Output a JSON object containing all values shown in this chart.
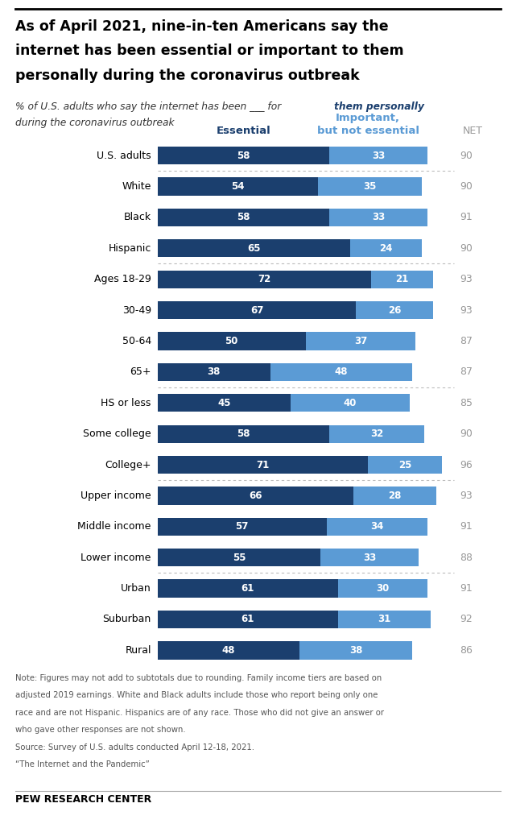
{
  "title_line1": "As of April 2021, nine-in-ten Americans say the",
  "title_line2": "internet has been essential or important to them",
  "title_line3": "personally during the coronavirus outbreak",
  "subtitle_plain": "% of U.S. adults who say the internet has been ___ for ",
  "subtitle_bold": "them personally",
  "subtitle_end": "during the coronavirus outbreak",
  "col_header_essential": "Essential",
  "col_header_important": "Important,\nbut not essential",
  "col_header_net": "NET",
  "categories": [
    "U.S. adults",
    "White",
    "Black",
    "Hispanic",
    "Ages 18-29",
    "30-49",
    "50-64",
    "65+",
    "HS or less",
    "Some college",
    "College+",
    "Upper income",
    "Middle income",
    "Lower income",
    "Urban",
    "Suburban",
    "Rural"
  ],
  "essential": [
    58,
    54,
    58,
    65,
    72,
    67,
    50,
    38,
    45,
    58,
    71,
    66,
    57,
    55,
    61,
    61,
    48
  ],
  "important": [
    33,
    35,
    33,
    24,
    21,
    26,
    37,
    48,
    40,
    32,
    25,
    28,
    34,
    33,
    30,
    31,
    38
  ],
  "net": [
    90,
    90,
    91,
    90,
    93,
    93,
    87,
    87,
    85,
    90,
    96,
    93,
    91,
    88,
    91,
    92,
    86
  ],
  "separator_after_idx": [
    0,
    3,
    7,
    10,
    13
  ],
  "color_essential": "#1b3f6e",
  "color_important": "#5b9bd5",
  "color_net": "#999999",
  "note_line1": "Note: Figures may not add to subtotals due to rounding. Family income tiers are based on",
  "note_line2": "adjusted 2019 earnings. White and Black adults include those who report being only one",
  "note_line3": "race and are not Hispanic. Hispanics are of any race. Those who did not give an answer or",
  "note_line4": "who gave other responses are not shown.",
  "note_line5": "Source: Survey of U.S. adults conducted April 12-18, 2021.",
  "note_line6": "“The Internet and the Pandemic”",
  "source_label": "PEW RESEARCH CENTER",
  "bar_height": 0.58
}
